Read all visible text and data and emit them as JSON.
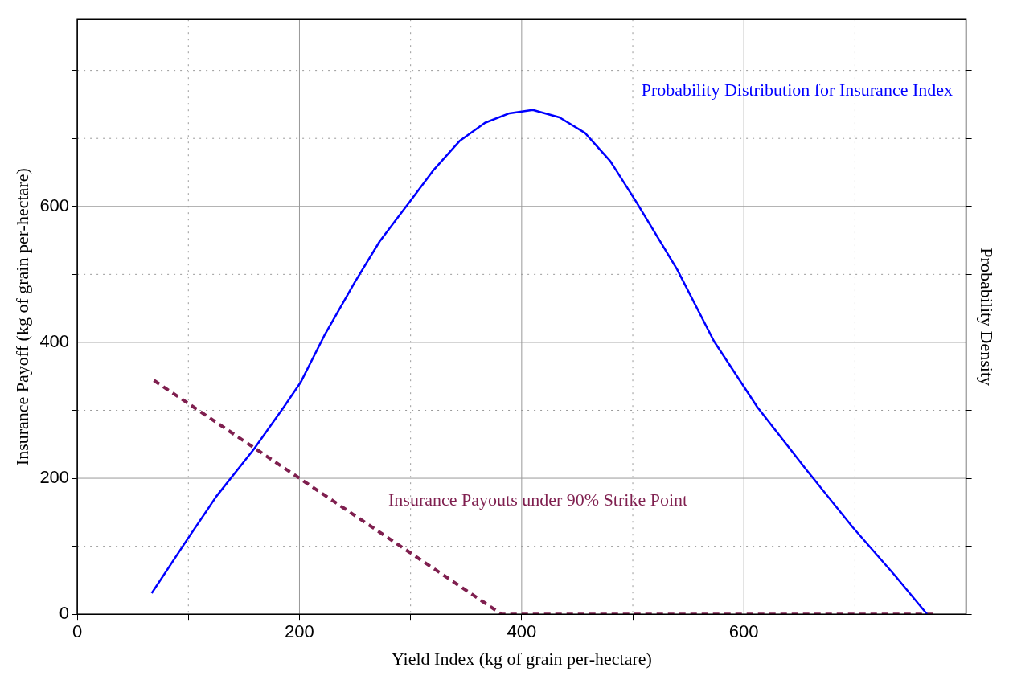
{
  "chart_data": {
    "type": "line",
    "xlabel": "Yield Index (kg of grain per-hectare)",
    "ylabel": "Insurance Payoff (kg of grain per-hectare)",
    "y2label": "Probability Density",
    "xlim": [
      0,
      800
    ],
    "xticks": [
      0,
      {
        "value": 100,
        "label": null
      },
      200,
      {
        "value": 300,
        "label": null
      },
      400,
      {
        "value": 500,
        "label": null
      },
      600,
      {
        "value": 700,
        "label": null
      }
    ],
    "ylim": [
      0,
      875
    ],
    "yticks": [
      0,
      {
        "value": 100,
        "label": null
      },
      200,
      {
        "value": 300,
        "label": null
      },
      400,
      {
        "value": 500,
        "label": null
      },
      600,
      {
        "value": 700,
        "label": null
      },
      {
        "value": 800,
        "label": null
      }
    ],
    "grid": true,
    "legend": false,
    "marker": "none",
    "series": [
      {
        "name": "Probability Distribution for Insurance Index",
        "color": "#0000ff",
        "line_style": "solid",
        "x": [
          67,
          99,
          125,
          159,
          186,
          201,
          223,
          250,
          272,
          291,
          321,
          344,
          367,
          389,
          410,
          434,
          457,
          480,
          503,
          540,
          573,
          612,
          657,
          698,
          736,
          765
        ],
        "values": [
          31,
          110,
          173,
          243,
          305,
          341,
          412,
          489,
          548,
          589,
          654,
          696,
          723,
          737,
          742,
          731,
          708,
          666,
          607,
          507,
          402,
          305,
          211,
          128,
          57,
          0
        ]
      },
      {
        "name": "Insurance Payouts under 90% Strike Point",
        "color": "#7f1f4f",
        "line_style": "dashed",
        "x": [
          69,
          382,
          770
        ],
        "values": [
          344,
          0,
          0
        ]
      }
    ]
  }
}
